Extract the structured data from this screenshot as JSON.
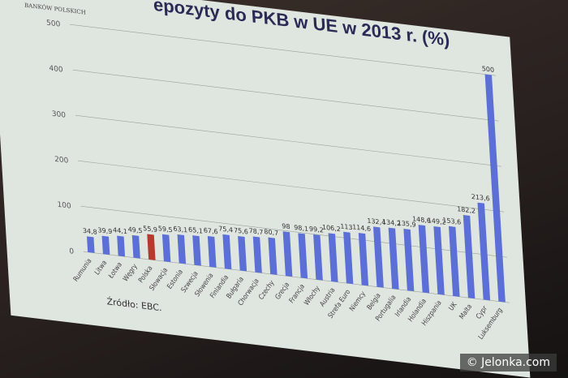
{
  "logo": {
    "text": "BANKÓW POLSKICH"
  },
  "footer": {
    "source": "Źródło: EBC."
  },
  "watermark": "© Jelonka.com",
  "colors": {
    "bar": "#5b6fd6",
    "highlight": "#b83a2e",
    "slide": "#dfe5df"
  },
  "chart_data": {
    "type": "bar",
    "title": "epozyty do PKB w UE w 2013 r. (%)",
    "categories": [
      "Rumunia",
      "Litwa",
      "Łotwa",
      "Węgry",
      "Polska",
      "Słowacja",
      "Estonia",
      "Szwecja",
      "Słowenia",
      "Finlandia",
      "Bułgaria",
      "Chorwacja",
      "Czechy",
      "Grecja",
      "Francja",
      "Włochy",
      "Austria",
      "Strefa Euro",
      "Niemcy",
      "Belgia",
      "Portugalia",
      "Irlandia",
      "Holandia",
      "Hiszpania",
      "UK",
      "Malta",
      "Cypr",
      "Luksemburg"
    ],
    "values": [
      34.8,
      39.9,
      44.1,
      49.5,
      55.9,
      59.5,
      63.1,
      65.1,
      67.6,
      75.4,
      75.6,
      78.7,
      80.7,
      98,
      98.1,
      99.2,
      106.2,
      113,
      114.6,
      132.4,
      134.2,
      135.9,
      148.6,
      149.2,
      153.6,
      182.2,
      213.6,
      500
    ],
    "highlight": "Polska",
    "ylim": [
      0,
      500
    ],
    "yticks": [
      0,
      100,
      200,
      300,
      400,
      500
    ],
    "grid": true
  }
}
